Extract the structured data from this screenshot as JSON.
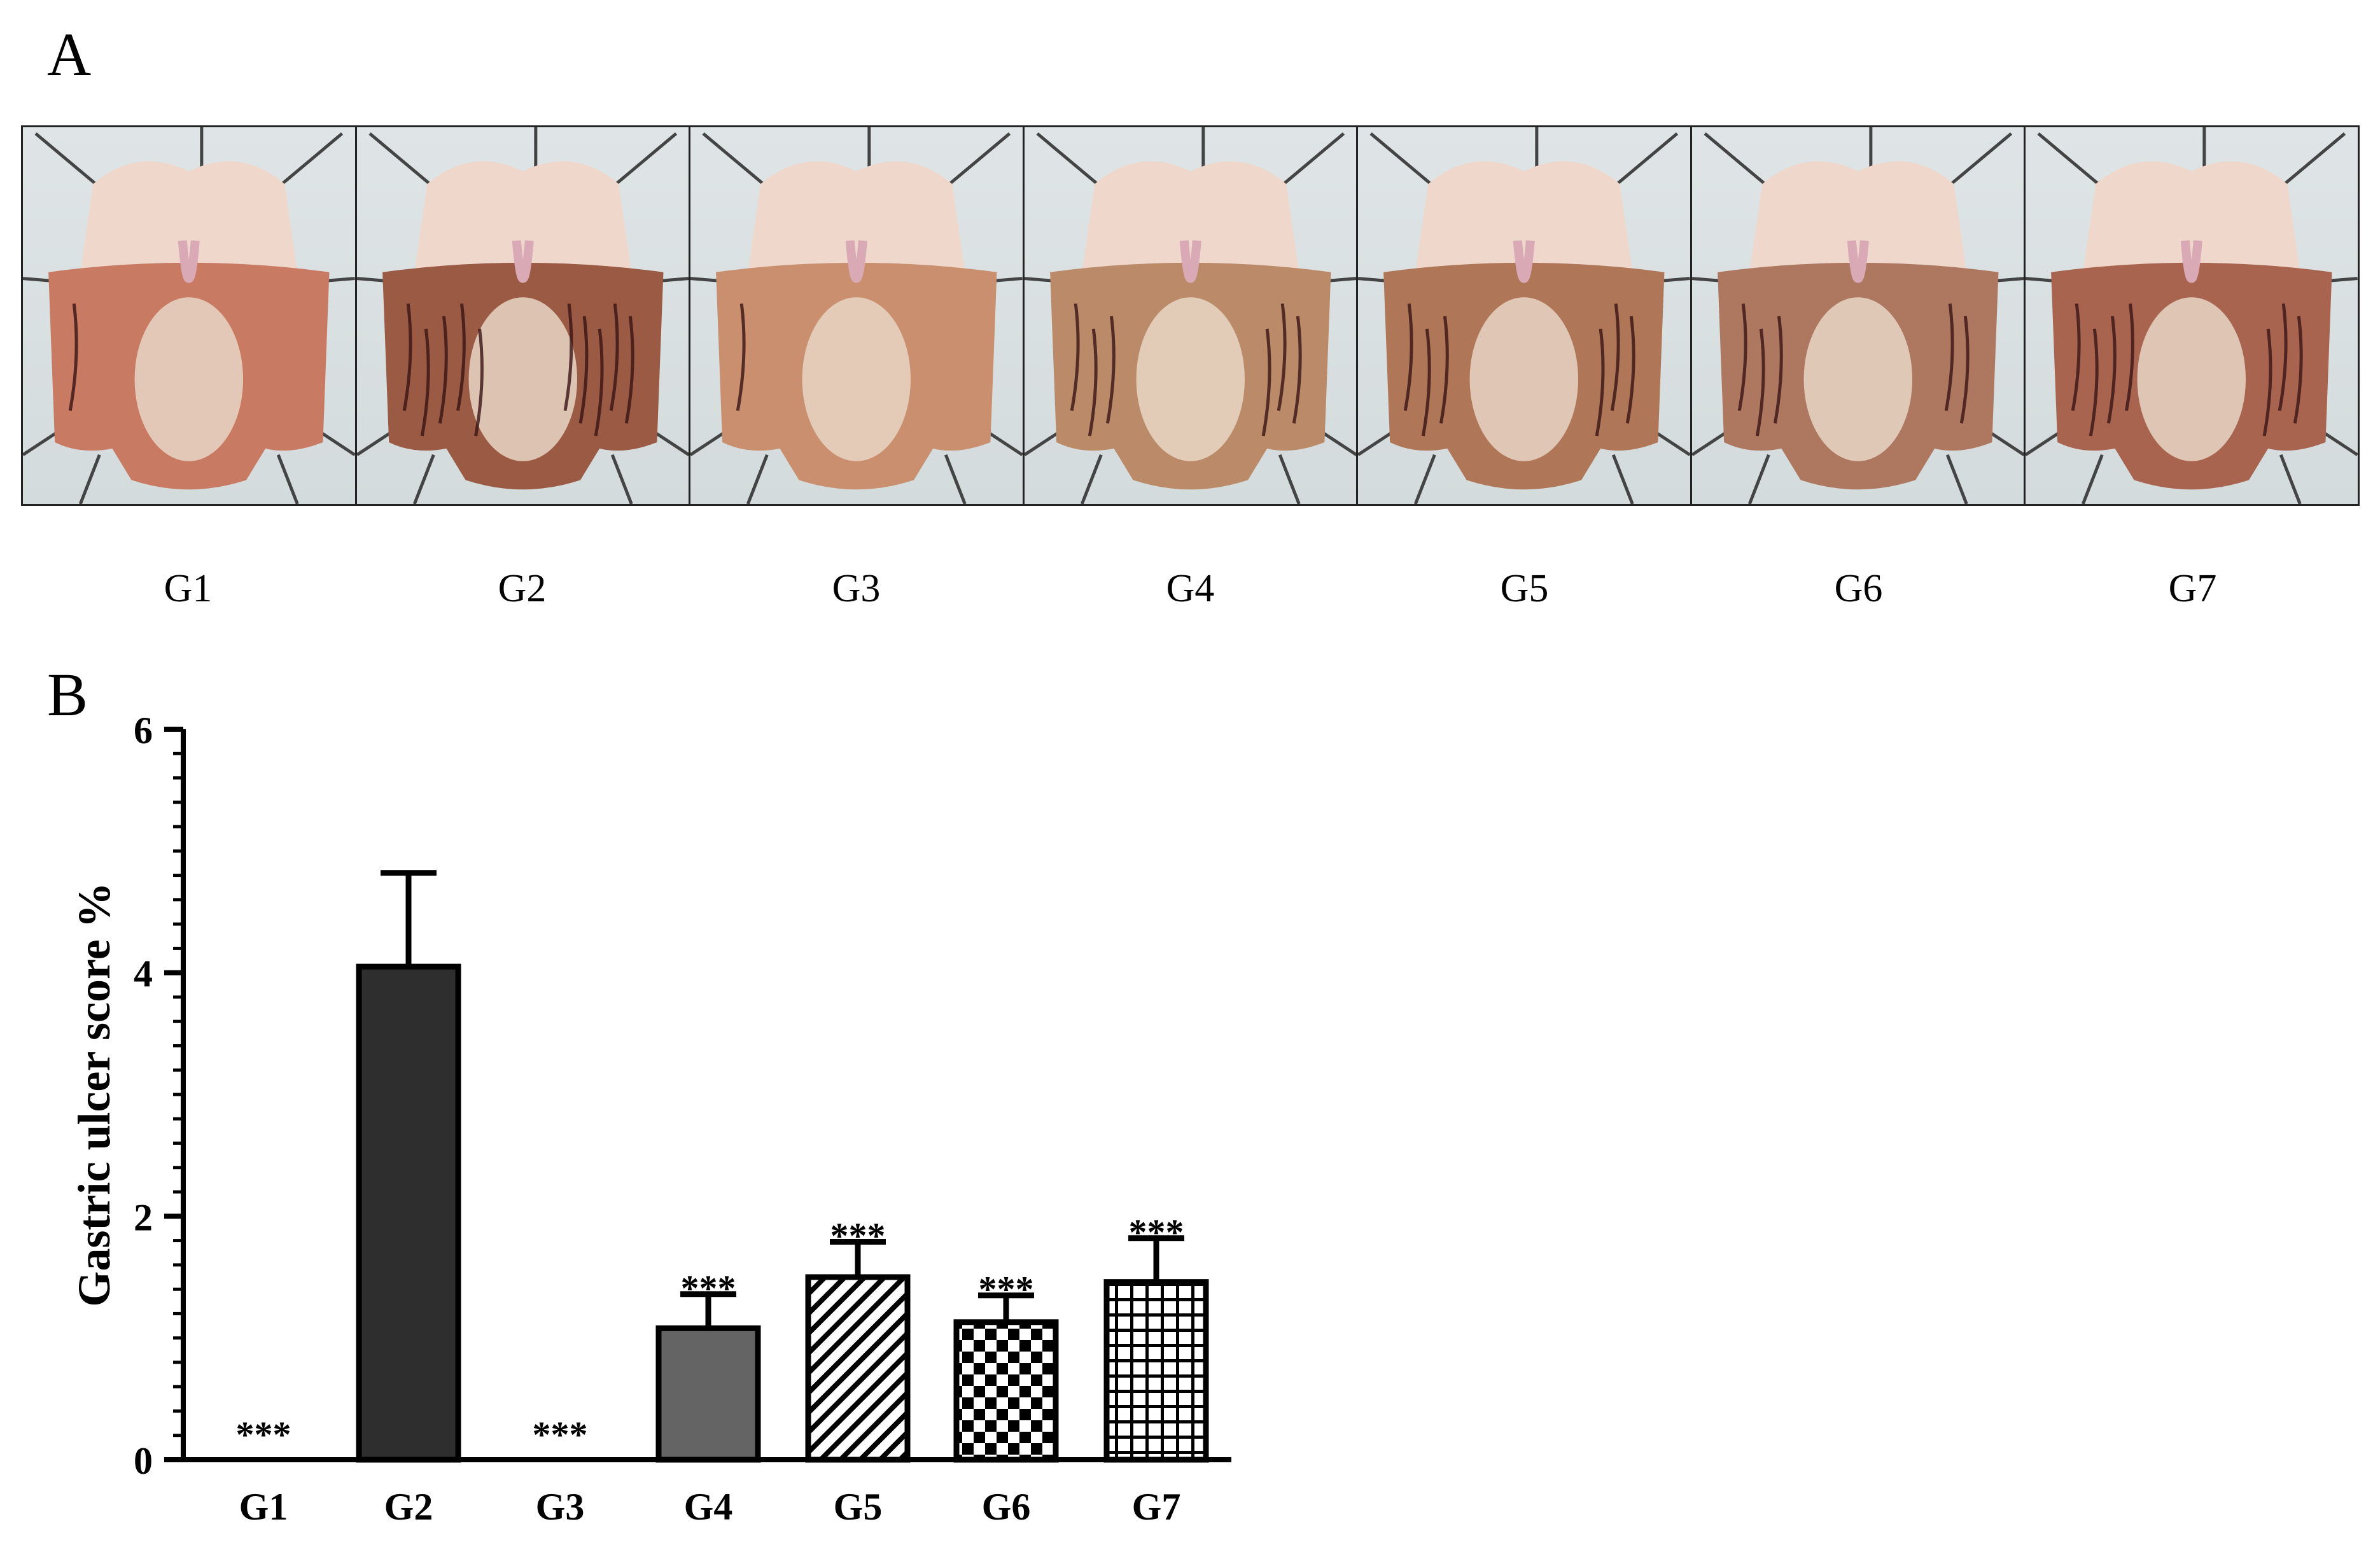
{
  "panel_a": {
    "label": "A",
    "groups": [
      "G1",
      "G2",
      "G3",
      "G4",
      "G5",
      "G6",
      "G7"
    ],
    "photo_descriptions": [
      "gastric-mucosa-photo",
      "gastric-mucosa-photo",
      "gastric-mucosa-photo",
      "gastric-mucosa-photo",
      "gastric-mucosa-photo",
      "gastric-mucosa-photo",
      "gastric-mucosa-photo"
    ]
  },
  "panel_b": {
    "label": "B"
  },
  "chart_data": {
    "type": "bar",
    "title": "",
    "xlabel": "",
    "ylabel": "Gastric ulcer score %",
    "ylim": [
      0,
      6
    ],
    "yticks": [
      0,
      2,
      4,
      6
    ],
    "categories": [
      "G1",
      "G2",
      "G3",
      "G4",
      "G5",
      "G6",
      "G7"
    ],
    "values": [
      0,
      4.05,
      0,
      1.08,
      1.5,
      1.13,
      1.46
    ],
    "errors": [
      0,
      0.77,
      0,
      0.28,
      0.29,
      0.22,
      0.36
    ],
    "significance": [
      "***",
      "",
      "***",
      "***",
      "***",
      "***",
      "***"
    ],
    "fills": [
      "none",
      "dark",
      "none",
      "gray",
      "diagonal-hatch",
      "checkerboard",
      "grid"
    ],
    "colors": {
      "dark": "#2e2e2e",
      "gray": "#646464",
      "line": "#000000"
    }
  }
}
